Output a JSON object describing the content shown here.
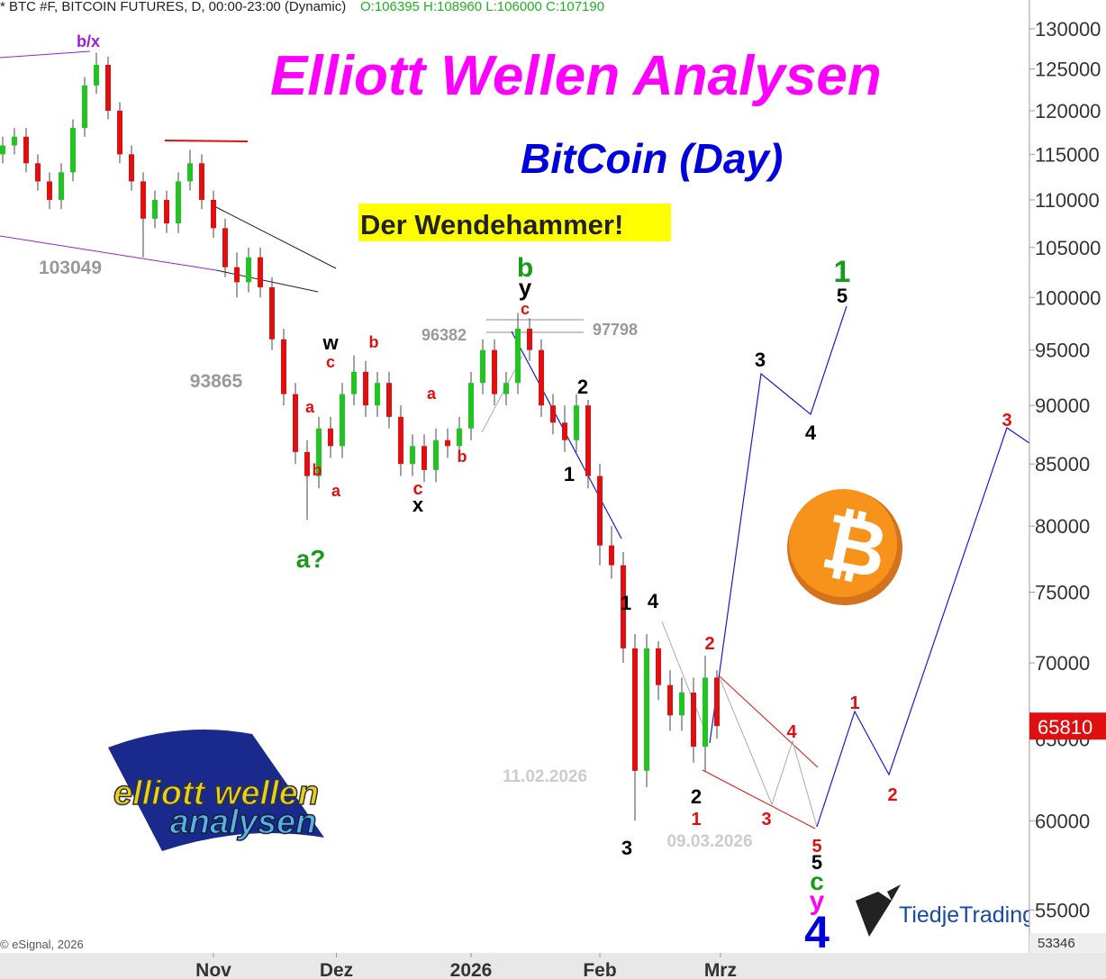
{
  "chart_data": {
    "type": "candlestick",
    "title": "Elliott Wellen Analysen",
    "subtitle": "BitCoin (Day)",
    "headline": "Der Wendehammer!",
    "header": {
      "symbol": "* BTC #F, BITCOIN FUTURES, D, 00:00-23:00 (Dynamic)",
      "ohlc": "O:106395 H:108960 L:106000 C:107190"
    },
    "source": "© eSignal, 2026",
    "brand": "TiedjeTrading",
    "logo_text": [
      "elliott wellen",
      "analysen"
    ],
    "coin_symbol": "₿",
    "log_scale": true,
    "up_color": "#22c422",
    "down_color": "#e01010",
    "open": [
      115000,
      116000,
      117000,
      114000,
      112000,
      110000,
      113000,
      118000,
      123000,
      125500,
      120000,
      115000,
      112000,
      108000,
      110000,
      107500,
      112000,
      114000,
      110000,
      107000,
      103000,
      101500,
      104000,
      101000,
      96000,
      91000,
      86000,
      84000,
      88000,
      86500,
      91000,
      93000,
      90000,
      92000,
      89000,
      85000,
      86500,
      84500,
      87000,
      86500,
      88000,
      92000,
      95000,
      91000,
      92000,
      97000,
      95000,
      90000,
      88500,
      87000,
      90000,
      84000,
      78500,
      77000,
      71000,
      63000,
      71000,
      68500,
      66500,
      68000,
      64500,
      69000
    ],
    "high": [
      117000,
      118000,
      118000,
      115000,
      113000,
      114000,
      119000,
      124000,
      127000,
      126500,
      121000,
      116000,
      113000,
      111000,
      111000,
      113000,
      115500,
      115000,
      111000,
      108000,
      104500,
      105000,
      105000,
      102000,
      97000,
      92000,
      87000,
      89000,
      89000,
      92000,
      94500,
      94000,
      93000,
      93000,
      90000,
      87500,
      87500,
      88000,
      88000,
      89000,
      93000,
      96000,
      96000,
      93000,
      98500,
      98000,
      96000,
      91000,
      90000,
      91000,
      90500,
      85000,
      80000,
      78000,
      72000,
      72000,
      71500,
      69500,
      69000,
      69000,
      70500,
      69500
    ],
    "low": [
      114000,
      115000,
      113000,
      111000,
      109000,
      109000,
      112000,
      117000,
      122000,
      119000,
      114000,
      111000,
      104000,
      107000,
      106500,
      106500,
      111000,
      109000,
      106000,
      102000,
      100000,
      100500,
      100000,
      95000,
      90000,
      85000,
      80500,
      83000,
      85500,
      85500,
      90000,
      89000,
      89000,
      88000,
      84000,
      84000,
      83500,
      83500,
      85500,
      85500,
      87000,
      91000,
      90000,
      90000,
      91000,
      94000,
      89000,
      87500,
      86000,
      86000,
      83000,
      77000,
      76000,
      70000,
      60000,
      62000,
      67500,
      65500,
      65500,
      63500,
      63000,
      65000
    ],
    "close": [
      116000,
      117000,
      114000,
      112000,
      110000,
      113000,
      118000,
      123000,
      125500,
      120000,
      115000,
      112000,
      108000,
      110000,
      107500,
      112000,
      114000,
      110000,
      107000,
      103000,
      101500,
      104000,
      101000,
      96000,
      91000,
      86000,
      84000,
      88000,
      86500,
      91000,
      93000,
      90000,
      92000,
      89000,
      85000,
      86500,
      84500,
      87000,
      86500,
      88000,
      92000,
      95000,
      91000,
      92000,
      97000,
      95000,
      90000,
      88500,
      87000,
      90000,
      84000,
      78500,
      77000,
      71000,
      63000,
      71000,
      68500,
      66500,
      68000,
      64500,
      69000,
      65810
    ],
    "last_price": 65810,
    "ylim": [
      53346,
      133700
    ],
    "yticks": [
      55000,
      60000,
      65000,
      70000,
      75000,
      80000,
      85000,
      90000,
      95000,
      100000,
      105000,
      110000,
      115000,
      120000,
      125000,
      130000
    ],
    "xticks": [
      {
        "value": 18,
        "label": "Nov"
      },
      {
        "value": 28.5,
        "label": "Dez"
      },
      {
        "value": 40,
        "label": "2026"
      },
      {
        "value": 51,
        "label": "Feb"
      },
      {
        "value": 61.3,
        "label": "Mrz"
      }
    ],
    "annotations": [
      {
        "text": "b/x",
        "color": "#9b1fd6"
      },
      {
        "text": "103049",
        "color": "#999999"
      },
      {
        "text": "93865",
        "color": "#999999"
      },
      {
        "text": "w",
        "color": "#000000"
      },
      {
        "text": "c",
        "color": "#e01010"
      },
      {
        "text": "b",
        "color": "#e01010"
      },
      {
        "text": "a",
        "color": "#e01010"
      },
      {
        "text": "b",
        "color": "#e01010"
      },
      {
        "text": "a",
        "color": "#e01010"
      },
      {
        "text": "a?",
        "color": "#1a9a1a"
      },
      {
        "text": "a",
        "color": "#e01010"
      },
      {
        "text": "c",
        "color": "#e01010"
      },
      {
        "text": "x",
        "color": "#000000"
      },
      {
        "text": "b",
        "color": "#e01010"
      },
      {
        "text": "96382",
        "color": "#999999"
      },
      {
        "text": "97798",
        "color": "#999999"
      },
      {
        "text": "b",
        "color": "#1a9a1a"
      },
      {
        "text": "y",
        "color": "#000000"
      },
      {
        "text": "c",
        "color": "#e01010"
      },
      {
        "text": "2",
        "color": "#000000"
      },
      {
        "text": "1",
        "color": "#000000"
      },
      {
        "text": "1",
        "color": "#000000"
      },
      {
        "text": "4",
        "color": "#000000"
      },
      {
        "text": "11.02.2026",
        "color": "#cccccc"
      },
      {
        "text": "3",
        "color": "#000000"
      },
      {
        "text": "2",
        "color": "#e01010"
      },
      {
        "text": "2",
        "color": "#000000"
      },
      {
        "text": "1",
        "color": "#e01010"
      },
      {
        "text": "09.03.2026",
        "color": "#cccccc"
      },
      {
        "text": "3",
        "color": "#000000"
      },
      {
        "text": "4",
        "color": "#000000"
      },
      {
        "text": "1",
        "color": "#1a9a1a"
      },
      {
        "text": "5",
        "color": "#000000"
      },
      {
        "text": "4",
        "color": "#e01010"
      },
      {
        "text": "3",
        "color": "#e01010"
      },
      {
        "text": "5",
        "color": "#e01010"
      },
      {
        "text": "5",
        "color": "#000000"
      },
      {
        "text": "c",
        "color": "#1a9a1a"
      },
      {
        "text": "y",
        "color": "#ff00ff"
      },
      {
        "text": "4",
        "color": "#0000dd"
      },
      {
        "text": "1",
        "color": "#e01010"
      },
      {
        "text": "2",
        "color": "#e01010"
      },
      {
        "text": "3",
        "color": "#e01010"
      }
    ]
  }
}
